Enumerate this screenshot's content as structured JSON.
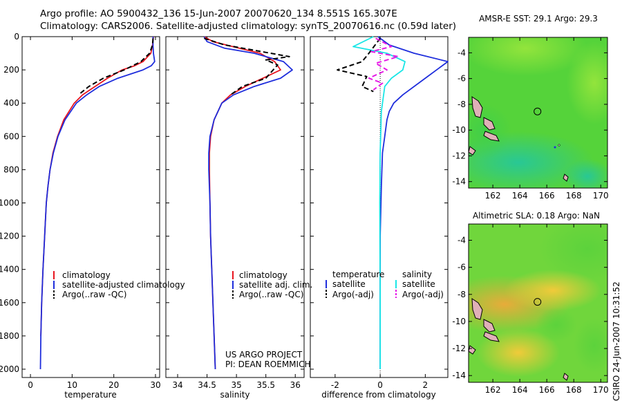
{
  "header": {
    "line1": "Argo profile: AO 5900432_136 15-Jun-2007 20070620_134 8.551S 165.307E",
    "line2": "Climatology: CARS2006. Satellite-adjusted climatology: synTS_20070616.nc (0.59d later)"
  },
  "footer": {
    "project": "US ARGO PROJECT",
    "pi": "PI: DEAN ROEMMICH",
    "timestamp": "CSIRO 24-Jun-2007 10:31:52"
  },
  "colors": {
    "climatology": "#e8141e",
    "satellite": "#1e2ddc",
    "argo": "#000000",
    "satellite_salinity": "#19e6e6",
    "argo_salinity": "#e619e6"
  },
  "chart_data": [
    {
      "type": "line",
      "id": "temperature",
      "xlabel": "temperature",
      "xlim": [
        -2,
        31
      ],
      "ylim": [
        2050,
        0
      ],
      "xticks": [
        0,
        10,
        20,
        30
      ],
      "yticks": [
        0,
        200,
        400,
        600,
        800,
        1000,
        1200,
        1400,
        1600,
        1800,
        2000
      ],
      "legend": [
        "climatology",
        "satellite-adjusted climatology",
        "Argo(..raw -QC)"
      ],
      "series": [
        {
          "name": "climatology",
          "style": "solid",
          "color": "#e8141e",
          "points": [
            [
              29.5,
              0
            ],
            [
              29.3,
              50
            ],
            [
              28.9,
              100
            ],
            [
              27.0,
              150
            ],
            [
              25.0,
              175
            ],
            [
              22.0,
              200
            ],
            [
              18.5,
              250
            ],
            [
              15.5,
              300
            ],
            [
              12.5,
              350
            ],
            [
              10.5,
              400
            ],
            [
              8.0,
              500
            ],
            [
              6.5,
              600
            ],
            [
              5.4,
              700
            ],
            [
              4.7,
              800
            ],
            [
              4.2,
              900
            ],
            [
              3.8,
              1000
            ],
            [
              3.4,
              1200
            ],
            [
              3.0,
              1400
            ],
            [
              2.7,
              1600
            ],
            [
              2.5,
              1800
            ]
          ]
        },
        {
          "name": "satellite-adjusted climatology",
          "style": "solid",
          "color": "#1e2ddc",
          "points": [
            [
              29.4,
              0
            ],
            [
              29.4,
              50
            ],
            [
              29.5,
              100
            ],
            [
              29.8,
              150
            ],
            [
              29.0,
              175
            ],
            [
              27.0,
              200
            ],
            [
              21.0,
              250
            ],
            [
              16.5,
              300
            ],
            [
              13.5,
              350
            ],
            [
              11.0,
              400
            ],
            [
              8.3,
              500
            ],
            [
              6.6,
              600
            ],
            [
              5.5,
              700
            ],
            [
              4.7,
              800
            ],
            [
              4.2,
              900
            ],
            [
              3.8,
              1000
            ],
            [
              3.4,
              1200
            ],
            [
              3.0,
              1400
            ],
            [
              2.7,
              1600
            ],
            [
              2.5,
              1800
            ],
            [
              2.4,
              2000
            ]
          ]
        },
        {
          "name": "Argo(..raw -QC)",
          "style": "dashed",
          "color": "#000000",
          "points": [
            [
              29.4,
              10
            ],
            [
              29.3,
              50
            ],
            [
              28.6,
              100
            ],
            [
              26.5,
              150
            ],
            [
              22.5,
              200
            ],
            [
              17.5,
              250
            ],
            [
              14.0,
              300
            ],
            [
              11.5,
              350
            ]
          ]
        }
      ]
    },
    {
      "type": "line",
      "id": "salinity",
      "xlabel": "salinity",
      "xlim": [
        33.8,
        36.15
      ],
      "ylim": [
        2050,
        0
      ],
      "xticks": [
        34,
        34.5,
        35,
        35.5,
        36
      ],
      "legend": [
        "climatology",
        "satellite adj. clim.",
        "Argo(..raw -QC)"
      ],
      "series": [
        {
          "name": "climatology",
          "style": "solid",
          "color": "#e8141e",
          "points": [
            [
              34.45,
              0
            ],
            [
              34.6,
              30
            ],
            [
              35.05,
              70
            ],
            [
              35.4,
              100
            ],
            [
              35.65,
              150
            ],
            [
              35.75,
              200
            ],
            [
              35.45,
              250
            ],
            [
              35.15,
              300
            ],
            [
              34.9,
              350
            ],
            [
              34.75,
              400
            ],
            [
              34.62,
              500
            ],
            [
              34.56,
              600
            ],
            [
              34.54,
              700
            ],
            [
              34.54,
              800
            ],
            [
              34.55,
              1000
            ],
            [
              34.56,
              1200
            ],
            [
              34.58,
              1400
            ],
            [
              34.6,
              1600
            ],
            [
              34.62,
              1800
            ],
            [
              34.64,
              2000
            ]
          ]
        },
        {
          "name": "satellite adj. clim.",
          "style": "solid",
          "color": "#1e2ddc",
          "points": [
            [
              34.45,
              0
            ],
            [
              34.5,
              30
            ],
            [
              34.8,
              70
            ],
            [
              35.3,
              100
            ],
            [
              35.8,
              150
            ],
            [
              35.95,
              200
            ],
            [
              35.75,
              250
            ],
            [
              35.3,
              300
            ],
            [
              34.95,
              350
            ],
            [
              34.75,
              400
            ],
            [
              34.62,
              500
            ],
            [
              34.55,
              600
            ],
            [
              34.53,
              700
            ],
            [
              34.53,
              800
            ],
            [
              34.55,
              1000
            ],
            [
              34.56,
              1200
            ],
            [
              34.58,
              1400
            ],
            [
              34.6,
              1600
            ],
            [
              34.62,
              1800
            ],
            [
              34.64,
              2000
            ]
          ]
        },
        {
          "name": "Argo(..raw -QC)",
          "style": "dashed",
          "color": "#000000",
          "points": [
            [
              34.45,
              10
            ],
            [
              34.8,
              50
            ],
            [
              35.9,
              120
            ],
            [
              35.5,
              140
            ],
            [
              35.7,
              170
            ],
            [
              35.5,
              250
            ],
            [
              35.1,
              300
            ],
            [
              34.9,
              350
            ]
          ]
        }
      ]
    },
    {
      "type": "line",
      "id": "difference",
      "xlabel": "difference from climatology",
      "xlim": [
        -3.1,
        3.0
      ],
      "ylim": [
        2050,
        0
      ],
      "xticks": [
        -2,
        0,
        2
      ],
      "legend_groups": [
        "temperature",
        "salinity"
      ],
      "legend": [
        "satellite",
        "Argo(-adj)",
        "satellite",
        "Argo(-adj)"
      ],
      "series": [
        {
          "name": "satellite",
          "group": "temperature",
          "style": "solid",
          "color": "#1e2ddc",
          "points": [
            [
              -0.1,
              0
            ],
            [
              0.4,
              50
            ],
            [
              1.5,
              100
            ],
            [
              3.0,
              150
            ],
            [
              2.0,
              250
            ],
            [
              1.0,
              350
            ],
            [
              0.6,
              400
            ],
            [
              0.4,
              450
            ],
            [
              0.3,
              500
            ],
            [
              0.2,
              600
            ],
            [
              0.1,
              700
            ],
            [
              0.05,
              900
            ],
            [
              0,
              1200
            ],
            [
              0,
              2000
            ]
          ]
        },
        {
          "name": "satellite",
          "group": "salinity",
          "style": "solid",
          "color": "#19e6e6",
          "points": [
            [
              -0.3,
              0
            ],
            [
              -1.2,
              60
            ],
            [
              0.3,
              100
            ],
            [
              1.1,
              150
            ],
            [
              1.0,
              200
            ],
            [
              0.5,
              250
            ],
            [
              0.2,
              300
            ],
            [
              0.05,
              450
            ],
            [
              0,
              700
            ],
            [
              -0.02,
              1000
            ],
            [
              0,
              1500
            ],
            [
              0,
              2000
            ]
          ]
        },
        {
          "name": "Argo(-adj)",
          "group": "temperature",
          "style": "dashed",
          "color": "#000000",
          "points": [
            [
              0,
              10
            ],
            [
              -0.5,
              100
            ],
            [
              -0.8,
              150
            ],
            [
              -1.9,
              200
            ],
            [
              -0.6,
              240
            ],
            [
              -0.8,
              300
            ],
            [
              -0.3,
              330
            ]
          ]
        },
        {
          "name": "Argo(-adj)",
          "group": "salinity",
          "style": "dashed",
          "color": "#e619e6",
          "points": [
            [
              -0.2,
              10
            ],
            [
              0.5,
              60
            ],
            [
              -0.4,
              90
            ],
            [
              0.8,
              120
            ],
            [
              -0.2,
              160
            ],
            [
              0.3,
              200
            ],
            [
              -0.5,
              250
            ],
            [
              0.1,
              280
            ],
            [
              -0.3,
              320
            ]
          ]
        }
      ]
    },
    {
      "type": "heatmap",
      "id": "sst-map",
      "title": "AMSR-E SST: 29.1 Argo: 29.3",
      "xlim": [
        160.2,
        170.5
      ],
      "ylim": [
        -14.5,
        -2.8
      ],
      "xticks": [
        162,
        164,
        166,
        168,
        170
      ],
      "yticks": [
        -4,
        -6,
        -8,
        -10,
        -12,
        -14
      ],
      "profile_marker": [
        165.307,
        -8.551
      ]
    },
    {
      "type": "heatmap",
      "id": "sla-map",
      "title": "Altimetric SLA: 0.18 Argo: NaN",
      "xlim": [
        160.2,
        170.5
      ],
      "ylim": [
        -14.5,
        -2.8
      ],
      "xticks": [
        162,
        164,
        166,
        168,
        170
      ],
      "yticks": [
        -4,
        -6,
        -8,
        -10,
        -12,
        -14
      ],
      "profile_marker": [
        165.307,
        -8.551
      ]
    }
  ]
}
